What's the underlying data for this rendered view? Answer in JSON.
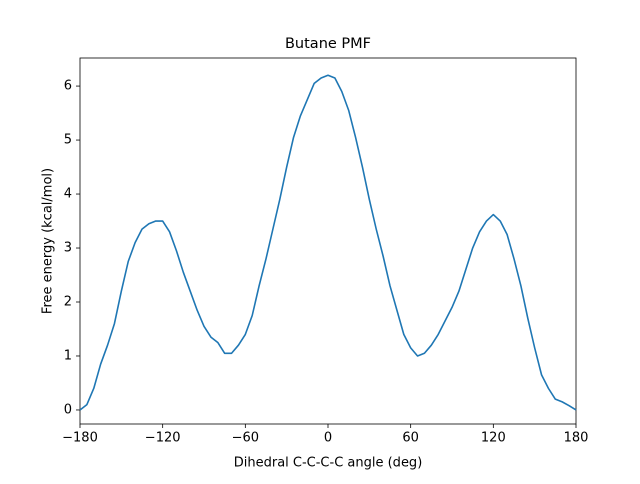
{
  "chart_data": {
    "type": "line",
    "title": "Butane PMF",
    "xlabel": "Dihedral C-C-C-C angle (deg)",
    "ylabel": "Free energy (kcal/mol)",
    "x": [
      -180,
      -175,
      -170,
      -165,
      -160,
      -155,
      -150,
      -145,
      -140,
      -135,
      -130,
      -125,
      -120,
      -115,
      -110,
      -105,
      -100,
      -95,
      -90,
      -85,
      -80,
      -75,
      -70,
      -65,
      -60,
      -55,
      -50,
      -45,
      -40,
      -35,
      -30,
      -25,
      -20,
      -15,
      -10,
      -5,
      0,
      5,
      10,
      15,
      20,
      25,
      30,
      35,
      40,
      45,
      50,
      55,
      60,
      65,
      70,
      75,
      80,
      85,
      90,
      95,
      100,
      105,
      110,
      115,
      120,
      125,
      130,
      135,
      140,
      145,
      150,
      155,
      160,
      165,
      170,
      175,
      180
    ],
    "values": [
      0.0,
      0.1,
      0.4,
      0.85,
      1.2,
      1.6,
      2.2,
      2.75,
      3.1,
      3.35,
      3.45,
      3.5,
      3.5,
      3.3,
      2.95,
      2.55,
      2.2,
      1.85,
      1.55,
      1.35,
      1.25,
      1.05,
      1.05,
      1.2,
      1.4,
      1.75,
      2.3,
      2.8,
      3.35,
      3.9,
      4.5,
      5.05,
      5.45,
      5.75,
      6.05,
      6.15,
      6.2,
      6.15,
      5.9,
      5.55,
      5.05,
      4.5,
      3.9,
      3.35,
      2.85,
      2.3,
      1.85,
      1.4,
      1.15,
      1.0,
      1.05,
      1.2,
      1.4,
      1.65,
      1.9,
      2.2,
      2.6,
      3.0,
      3.3,
      3.5,
      3.62,
      3.5,
      3.25,
      2.8,
      2.3,
      1.7,
      1.15,
      0.65,
      0.4,
      0.2,
      0.15,
      0.08,
      0.0
    ],
    "color": "#1f77b4",
    "xlim": [
      -180,
      180
    ],
    "xticks": [
      {
        "value": -180,
        "label": "−180"
      },
      {
        "value": -120,
        "label": "−120"
      },
      {
        "value": -60,
        "label": "−60"
      },
      0,
      60,
      120,
      180
    ],
    "ylim": [
      -0.26,
      6.52
    ],
    "yticks": [
      0,
      1,
      2,
      3,
      4,
      5,
      6
    ]
  }
}
